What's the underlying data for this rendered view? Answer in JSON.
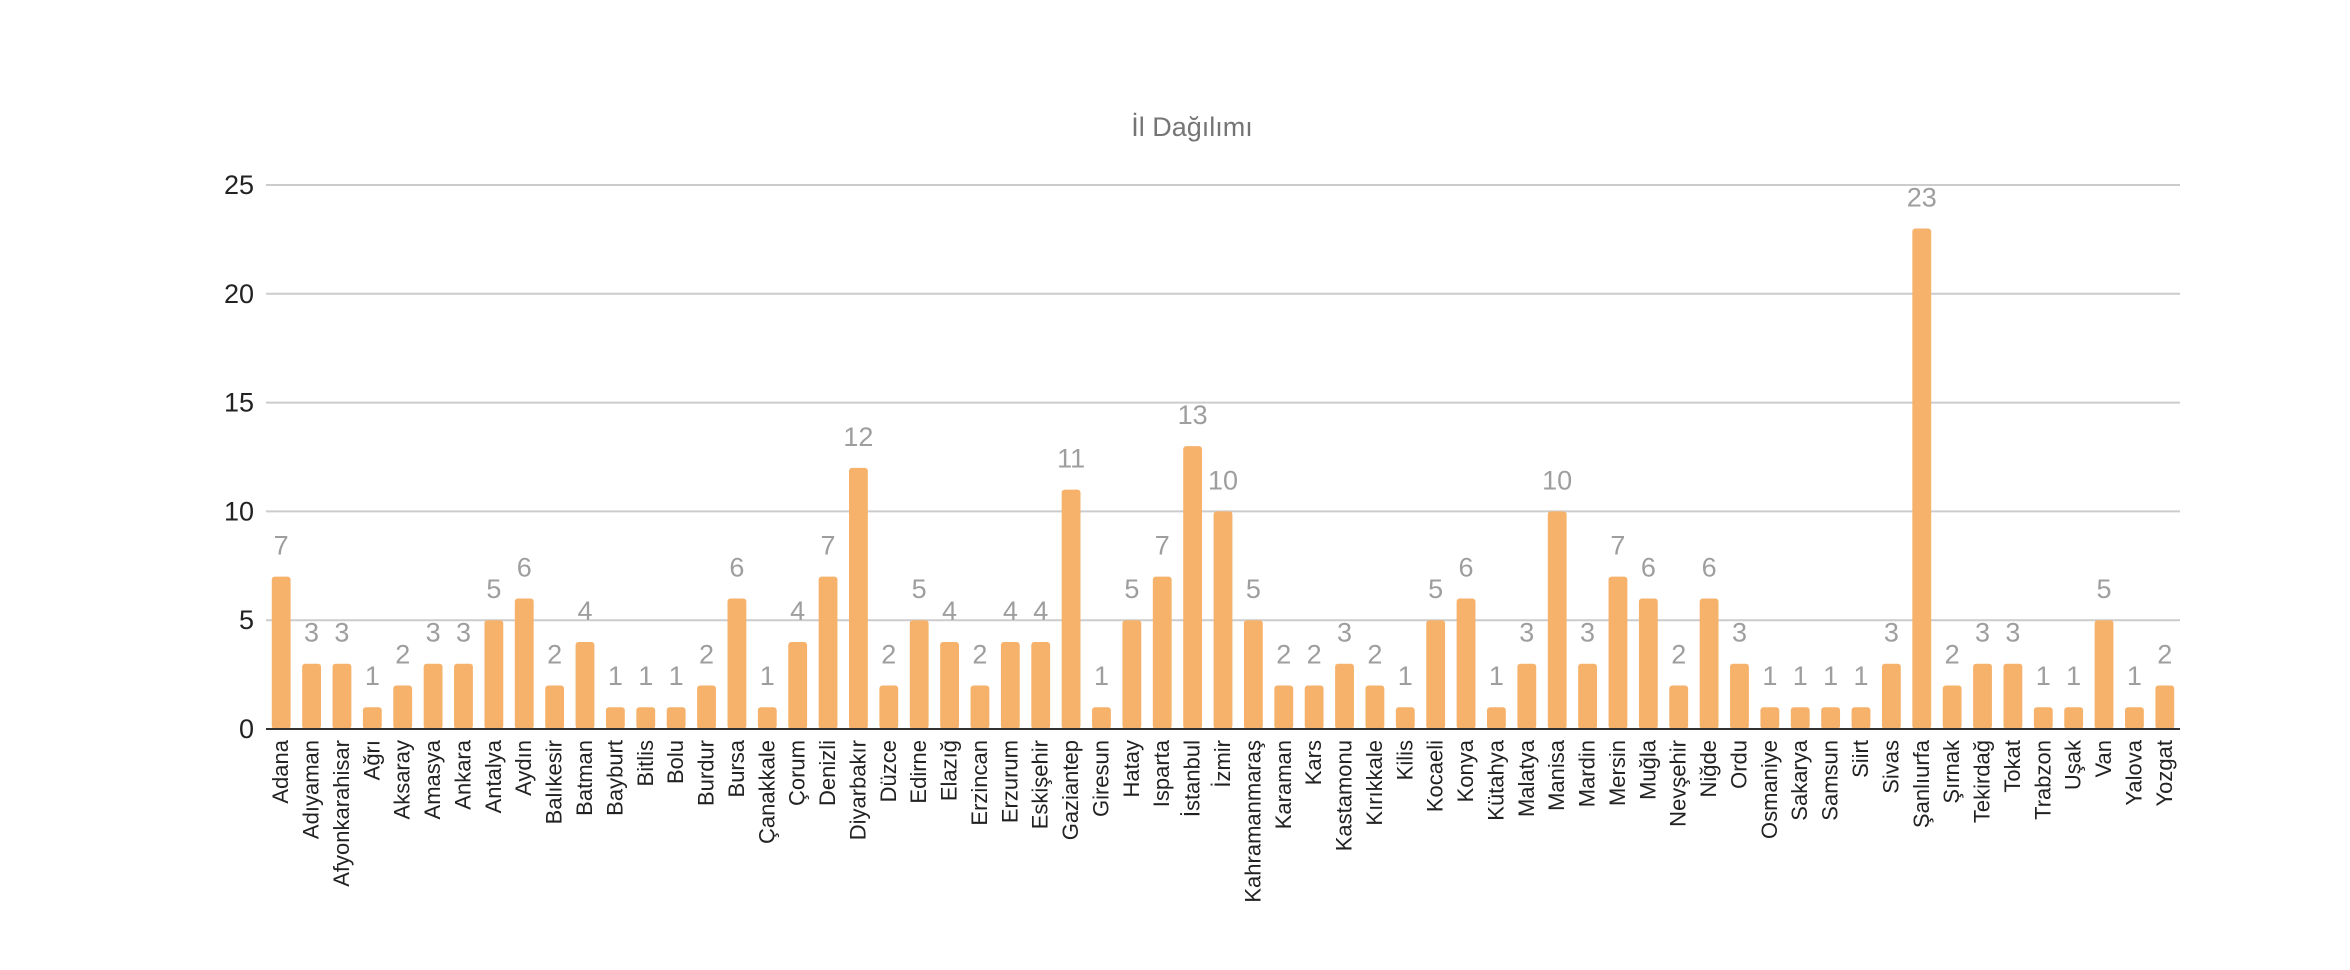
{
  "chart_data": {
    "type": "bar",
    "title": "İl Dağılımı",
    "xlabel": "",
    "ylabel": "",
    "ylim": [
      0,
      25
    ],
    "yticks": [
      0,
      5,
      10,
      15,
      20,
      25
    ],
    "grid": true,
    "legend": "none",
    "bar_color": "#f6b26b",
    "categories": [
      "Adana",
      "Adıyaman",
      "Afyonkarahisar",
      "Ağrı",
      "Aksaray",
      "Amasya",
      "Ankara",
      "Antalya",
      "Aydın",
      "Balıkesir",
      "Batman",
      "Bayburt",
      "Bitlis",
      "Bolu",
      "Burdur",
      "Bursa",
      "Çanakkale",
      "Çorum",
      "Denizli",
      "Diyarbakır",
      "Düzce",
      "Edirne",
      "Elazığ",
      "Erzincan",
      "Erzurum",
      "Eskişehir",
      "Gaziantep",
      "Giresun",
      "Hatay",
      "Isparta",
      "İstanbul",
      "İzmir",
      "Kahramanmaraş",
      "Karaman",
      "Kars",
      "Kastamonu",
      "Kırıkkale",
      "Kilis",
      "Kocaeli",
      "Konya",
      "Kütahya",
      "Malatya",
      "Manisa",
      "Mardin",
      "Mersin",
      "Muğla",
      "Nevşehir",
      "Niğde",
      "Ordu",
      "Osmaniye",
      "Sakarya",
      "Samsun",
      "Siirt",
      "Sivas",
      "Şanlıurfa",
      "Şırnak",
      "Tekirdağ",
      "Tokat",
      "Trabzon",
      "Uşak",
      "Van",
      "Yalova",
      "Yozgat"
    ],
    "values": [
      7,
      3,
      3,
      1,
      2,
      3,
      3,
      5,
      6,
      2,
      4,
      1,
      1,
      1,
      2,
      6,
      1,
      4,
      7,
      12,
      2,
      5,
      4,
      2,
      4,
      4,
      11,
      1,
      5,
      7,
      13,
      10,
      5,
      2,
      2,
      3,
      2,
      1,
      5,
      6,
      1,
      3,
      10,
      3,
      7,
      6,
      2,
      6,
      3,
      1,
      1,
      1,
      1,
      3,
      23,
      2,
      3,
      3,
      1,
      1,
      5,
      1,
      2
    ]
  }
}
